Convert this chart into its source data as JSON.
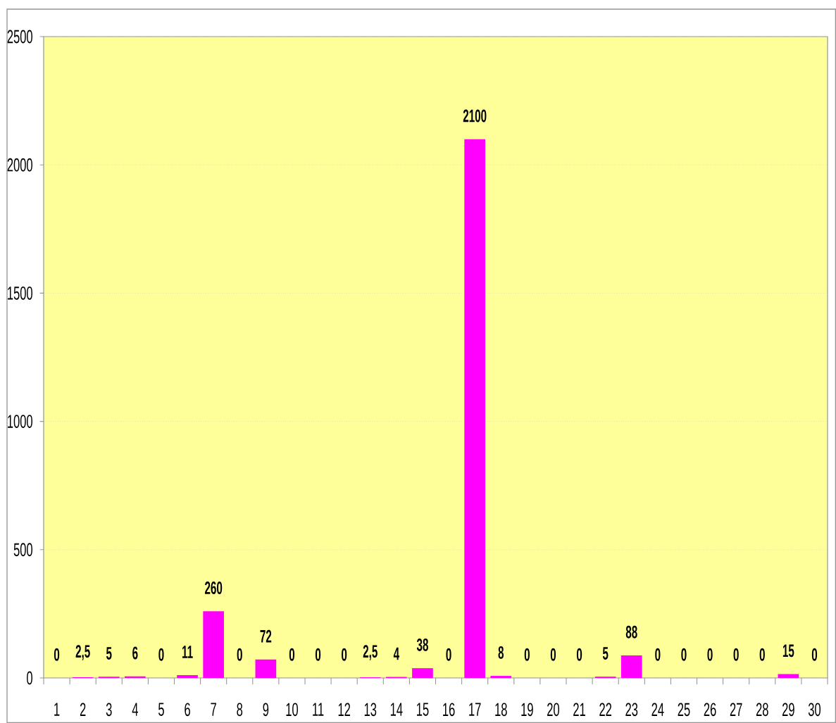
{
  "chart_data": {
    "type": "bar",
    "categories": [
      "1",
      "2",
      "3",
      "4",
      "5",
      "6",
      "7",
      "8",
      "9",
      "10",
      "11",
      "12",
      "13",
      "14",
      "15",
      "16",
      "17",
      "18",
      "19",
      "20",
      "21",
      "22",
      "23",
      "24",
      "25",
      "26",
      "27",
      "28",
      "29",
      "30"
    ],
    "values": [
      0,
      2.5,
      5,
      6,
      0,
      11,
      260,
      0,
      72,
      0,
      0,
      0,
      2.5,
      4,
      38,
      0,
      2100,
      8,
      0,
      0,
      0,
      5,
      88,
      0,
      0,
      0,
      0,
      0,
      15,
      0
    ],
    "value_labels": [
      "0",
      "2,5",
      "5",
      "6",
      "0",
      "11",
      "260",
      "0",
      "72",
      "0",
      "0",
      "0",
      "2,5",
      "4",
      "38",
      "0",
      "2100",
      "8",
      "0",
      "0",
      "0",
      "5",
      "88",
      "0",
      "0",
      "0",
      "0",
      "0",
      "15",
      "0"
    ],
    "color": "#ff00ff",
    "ylim": [
      0,
      2500
    ],
    "yticks": [
      0,
      500,
      1000,
      1500,
      2000,
      2500
    ],
    "grid": "y"
  }
}
